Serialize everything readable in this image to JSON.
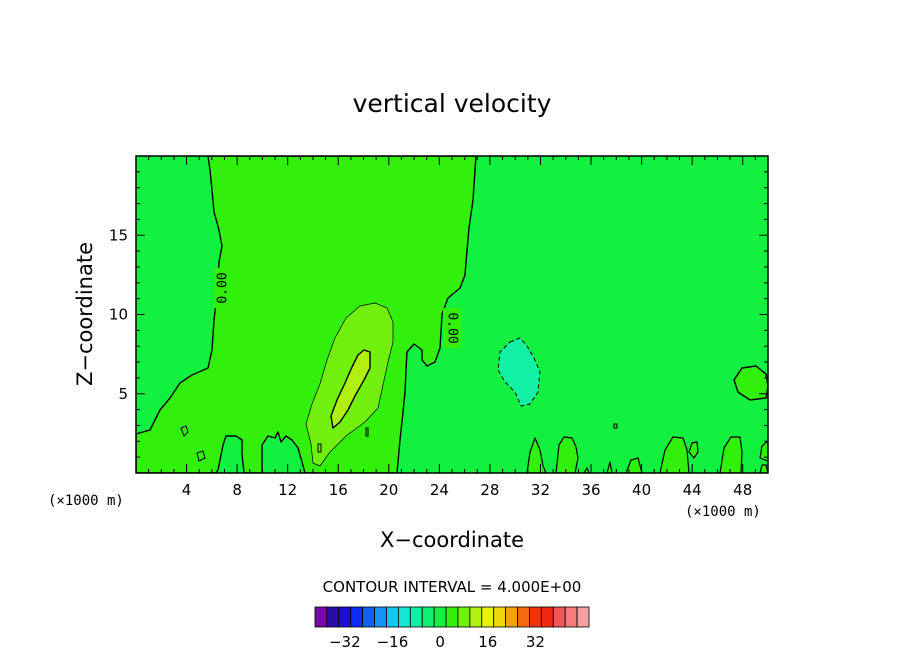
{
  "chart_data": {
    "type": "contour",
    "title": "vertical velocity",
    "xlabel": "X−coordinate",
    "ylabel": "Z−coordinate",
    "x_unit": "(×1000 m)",
    "xlim": [
      0,
      50
    ],
    "ylim": [
      0,
      20
    ],
    "x_ticks": [
      4,
      8,
      12,
      16,
      20,
      24,
      28,
      32,
      36,
      40,
      44,
      48
    ],
    "y_ticks": [
      5,
      10,
      15
    ],
    "contour_interval_label": "CONTOUR INTERVAL = 4.000E+00",
    "contour_labels": [
      {
        "text": "0.00",
        "x": 6.9,
        "y": 11.5,
        "rotation": -90
      },
      {
        "text": "0.00",
        "x": 25.3,
        "y": 9.0,
        "rotation": 90
      }
    ],
    "colorbar": {
      "colors": [
        "#7a0aa5",
        "#2a0ca8",
        "#1f0ed0",
        "#0d2cf5",
        "#0f63f3",
        "#1195f1",
        "#16c6f0",
        "#14e6d8",
        "#12f0a5",
        "#10f070",
        "#12f040",
        "#30f00c",
        "#70f00c",
        "#b0f010",
        "#e8f010",
        "#f0d810",
        "#f3a510",
        "#f56a10",
        "#f5300c",
        "#f02814",
        "#f0585a",
        "#f27c7c",
        "#f4a0a0"
      ],
      "tick_labels": [
        "−32",
        "−16",
        "0",
        "16",
        "32"
      ]
    },
    "regions": [
      {
        "level": 0,
        "color": "#12f040",
        "desc": "background, w between -4 and 0"
      },
      {
        "level": 4,
        "color": "#30f00c",
        "desc": "w between 0 and 4 (updraft zone x 6-27)"
      },
      {
        "level": 8,
        "color": "#70f00c",
        "desc": "w between 4 and 8 near x 14-20, z 1-10.5"
      },
      {
        "level": 12,
        "color": "#b0f010",
        "desc": "w between 8 and 12 near x 16-18.5, z 3-7.8"
      },
      {
        "level": -4,
        "color": "#12f0a5",
        "desc": "downdraft near x 29-32, z 4-8.5"
      }
    ]
  }
}
